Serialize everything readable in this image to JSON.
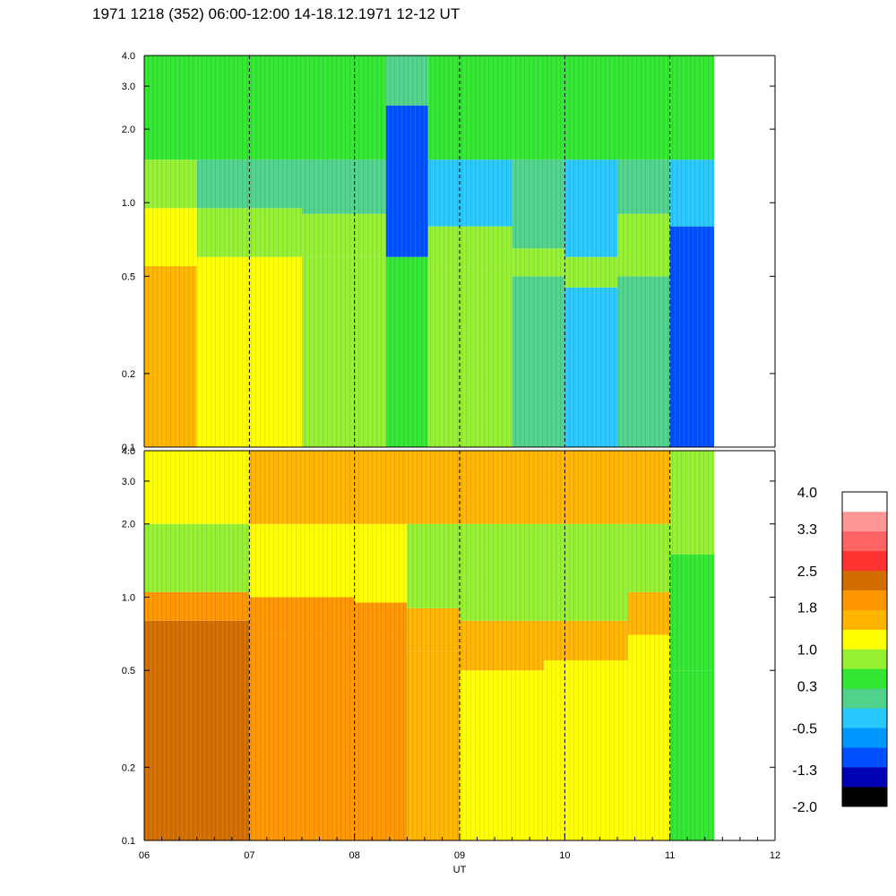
{
  "title": "1971 1218 (352) 06:00-12:00 14-18.12.1971  12-12 UT",
  "chart_data": [
    {
      "type": "heatmap",
      "panel": "top",
      "x_unit": "UT (hours)",
      "xlim": [
        6,
        12
      ],
      "data_end_x": 11.42,
      "y_scale": "log",
      "ylim": [
        0.1,
        4.0
      ],
      "y_ticks": [
        0.1,
        0.2,
        0.5,
        1.0,
        2.0,
        3.0,
        4.0
      ],
      "y_tick_labels": [
        "0.1",
        "0.2",
        "0.5",
        "1.0",
        "2.0",
        "3.0",
        "4.0"
      ],
      "dashed_hour_markers": [
        7,
        8,
        9,
        10,
        11
      ],
      "bands": [
        {
          "x_from": 6.0,
          "x_to": 6.5,
          "rows": [
            {
              "y_from": 0.1,
              "y_to": 0.55,
              "value": 1.4
            },
            {
              "y_from": 0.55,
              "y_to": 0.95,
              "value": 1.0
            },
            {
              "y_from": 0.95,
              "y_to": 1.5,
              "value": 0.7
            },
            {
              "y_from": 1.5,
              "y_to": 4.0,
              "value": 0.5
            }
          ]
        },
        {
          "x_from": 6.5,
          "x_to": 7.5,
          "rows": [
            {
              "y_from": 0.1,
              "y_to": 0.6,
              "value": 1.0
            },
            {
              "y_from": 0.6,
              "y_to": 0.95,
              "value": 0.9
            },
            {
              "y_from": 0.95,
              "y_to": 1.5,
              "value": 0.2
            },
            {
              "y_from": 1.5,
              "y_to": 4.0,
              "value": 0.4
            }
          ]
        },
        {
          "x_from": 7.5,
          "x_to": 8.3,
          "rows": [
            {
              "y_from": 0.1,
              "y_to": 0.6,
              "value": 0.8
            },
            {
              "y_from": 0.6,
              "y_to": 0.9,
              "value": 0.9
            },
            {
              "y_from": 0.9,
              "y_to": 1.5,
              "value": -0.1
            },
            {
              "y_from": 1.5,
              "y_to": 4.0,
              "value": 0.3
            }
          ]
        },
        {
          "x_from": 8.3,
          "x_to": 8.7,
          "rows": [
            {
              "y_from": 0.1,
              "y_to": 0.6,
              "value": 0.5
            },
            {
              "y_from": 0.6,
              "y_to": 2.5,
              "value": -0.9
            },
            {
              "y_from": 2.5,
              "y_to": 4.0,
              "value": 0.2
            }
          ]
        },
        {
          "x_from": 8.7,
          "x_to": 9.5,
          "rows": [
            {
              "y_from": 0.1,
              "y_to": 0.55,
              "value": 0.8
            },
            {
              "y_from": 0.55,
              "y_to": 0.8,
              "value": 0.7
            },
            {
              "y_from": 0.8,
              "y_to": 1.5,
              "value": -0.2
            },
            {
              "y_from": 1.5,
              "y_to": 4.0,
              "value": 0.4
            }
          ]
        },
        {
          "x_from": 9.5,
          "x_to": 10.0,
          "rows": [
            {
              "y_from": 0.1,
              "y_to": 0.5,
              "value": 0.2
            },
            {
              "y_from": 0.5,
              "y_to": 0.65,
              "value": 0.7
            },
            {
              "y_from": 0.65,
              "y_to": 1.5,
              "value": -0.1
            },
            {
              "y_from": 1.5,
              "y_to": 4.0,
              "value": 0.3
            }
          ]
        },
        {
          "x_from": 10.0,
          "x_to": 10.5,
          "rows": [
            {
              "y_from": 0.1,
              "y_to": 0.45,
              "value": -0.2
            },
            {
              "y_from": 0.45,
              "y_to": 0.6,
              "value": 0.7
            },
            {
              "y_from": 0.6,
              "y_to": 1.5,
              "value": -0.3
            },
            {
              "y_from": 1.5,
              "y_to": 4.0,
              "value": 0.3
            }
          ]
        },
        {
          "x_from": 10.5,
          "x_to": 11.0,
          "rows": [
            {
              "y_from": 0.1,
              "y_to": 0.5,
              "value": 0.0
            },
            {
              "y_from": 0.5,
              "y_to": 0.9,
              "value": 0.7
            },
            {
              "y_from": 0.9,
              "y_to": 1.5,
              "value": 0.0
            },
            {
              "y_from": 1.5,
              "y_to": 4.0,
              "value": 0.4
            }
          ]
        },
        {
          "x_from": 11.0,
          "x_to": 11.42,
          "rows": [
            {
              "y_from": 0.1,
              "y_to": 0.8,
              "value": -0.9
            },
            {
              "y_from": 0.8,
              "y_to": 1.5,
              "value": -0.3
            },
            {
              "y_from": 1.5,
              "y_to": 4.0,
              "value": 0.3
            }
          ]
        }
      ]
    },
    {
      "type": "heatmap",
      "panel": "bottom",
      "x_unit": "UT (hours)",
      "xlabel": "UT",
      "xlim": [
        6,
        12
      ],
      "data_end_x": 11.42,
      "x_ticks": [
        6,
        7,
        8,
        9,
        10,
        11,
        12
      ],
      "x_tick_labels": [
        "06",
        "07",
        "08",
        "09",
        "10",
        "11",
        "12"
      ],
      "y_scale": "log",
      "ylim": [
        0.1,
        4.0
      ],
      "y_ticks": [
        0.1,
        0.2,
        0.5,
        1.0,
        2.0,
        3.0,
        4.0
      ],
      "y_tick_labels": [
        "0.1",
        "0.2",
        "0.5",
        "1.0",
        "2.0",
        "3.0",
        "4.0"
      ],
      "dashed_hour_markers": [
        7,
        8,
        9,
        10,
        11
      ],
      "bands": [
        {
          "x_from": 6.0,
          "x_to": 7.0,
          "rows": [
            {
              "y_from": 0.1,
              "y_to": 0.8,
              "value": 2.2
            },
            {
              "y_from": 0.8,
              "y_to": 1.05,
              "value": 1.9
            },
            {
              "y_from": 1.05,
              "y_to": 2.0,
              "value": 0.8
            },
            {
              "y_from": 2.0,
              "y_to": 4.0,
              "value": 1.3
            }
          ]
        },
        {
          "x_from": 7.0,
          "x_to": 8.0,
          "rows": [
            {
              "y_from": 0.1,
              "y_to": 0.7,
              "value": 2.0
            },
            {
              "y_from": 0.7,
              "y_to": 1.0,
              "value": 1.9
            },
            {
              "y_from": 1.0,
              "y_to": 2.0,
              "value": 1.0
            },
            {
              "y_from": 2.0,
              "y_to": 4.0,
              "value": 1.5
            }
          ]
        },
        {
          "x_from": 8.0,
          "x_to": 8.5,
          "rows": [
            {
              "y_from": 0.1,
              "y_to": 0.7,
              "value": 1.8
            },
            {
              "y_from": 0.7,
              "y_to": 0.95,
              "value": 1.8
            },
            {
              "y_from": 0.95,
              "y_to": 2.0,
              "value": 1.0
            },
            {
              "y_from": 2.0,
              "y_to": 4.0,
              "value": 1.5
            }
          ]
        },
        {
          "x_from": 8.5,
          "x_to": 9.0,
          "rows": [
            {
              "y_from": 0.1,
              "y_to": 0.6,
              "value": 1.5
            },
            {
              "y_from": 0.6,
              "y_to": 0.9,
              "value": 1.7
            },
            {
              "y_from": 0.9,
              "y_to": 2.0,
              "value": 0.9
            },
            {
              "y_from": 2.0,
              "y_to": 4.0,
              "value": 1.4
            }
          ]
        },
        {
          "x_from": 9.0,
          "x_to": 9.8,
          "rows": [
            {
              "y_from": 0.1,
              "y_to": 0.5,
              "value": 1.2
            },
            {
              "y_from": 0.5,
              "y_to": 0.8,
              "value": 1.6
            },
            {
              "y_from": 0.8,
              "y_to": 2.0,
              "value": 0.9
            },
            {
              "y_from": 2.0,
              "y_to": 4.0,
              "value": 1.4
            }
          ]
        },
        {
          "x_from": 9.8,
          "x_to": 10.6,
          "rows": [
            {
              "y_from": 0.1,
              "y_to": 0.55,
              "value": 1.1
            },
            {
              "y_from": 0.55,
              "y_to": 0.8,
              "value": 1.6
            },
            {
              "y_from": 0.8,
              "y_to": 2.0,
              "value": 0.9
            },
            {
              "y_from": 2.0,
              "y_to": 4.0,
              "value": 1.4
            }
          ]
        },
        {
          "x_from": 10.6,
          "x_to": 11.0,
          "rows": [
            {
              "y_from": 0.1,
              "y_to": 0.7,
              "value": 1.0
            },
            {
              "y_from": 0.7,
              "y_to": 1.05,
              "value": 1.7
            },
            {
              "y_from": 1.05,
              "y_to": 2.0,
              "value": 0.9
            },
            {
              "y_from": 2.0,
              "y_to": 4.0,
              "value": 1.4
            }
          ]
        },
        {
          "x_from": 11.0,
          "x_to": 11.42,
          "rows": [
            {
              "y_from": 0.1,
              "y_to": 0.5,
              "value": 0.3
            },
            {
              "y_from": 0.5,
              "y_to": 1.5,
              "value": 0.6
            },
            {
              "y_from": 1.5,
              "y_to": 4.0,
              "value": 0.8
            }
          ]
        }
      ]
    }
  ],
  "colorbar": {
    "min": -2.0,
    "max": 4.0,
    "labels": [
      "4.0",
      "3.3",
      "2.5",
      "1.8",
      "1.0",
      "0.3",
      "-0.5",
      "-1.3",
      "-2.0"
    ],
    "colors_bottom_to_top": [
      "#000000",
      "#0000b4",
      "#0050ff",
      "#0096ff",
      "#28c8ff",
      "#50d28c",
      "#32e632",
      "#96f032",
      "#ffff00",
      "#ffb400",
      "#ff9600",
      "#d26e00",
      "#ff3232",
      "#ff6464",
      "#ff9696",
      "#ffffff"
    ]
  }
}
